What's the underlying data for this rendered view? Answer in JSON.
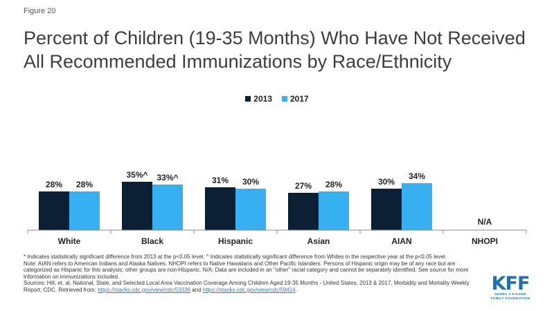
{
  "figure_label": "Figure 20",
  "title": "Percent of Children (19-35 Months) Who Have Not Received All Recommended Immunizations by Race/Ethnicity",
  "colors": {
    "2013": "#0b1f35",
    "2017": "#36b0f0"
  },
  "chart_data": {
    "type": "bar",
    "title": "Percent of Children (19-35 Months) Who Have Not Received All Recommended Immunizations by Race/Ethnicity",
    "categories": [
      "White",
      "Black",
      "Hispanic",
      "Asian",
      "AIAN",
      "NHOPI"
    ],
    "series": [
      {
        "name": "2013",
        "values": [
          28,
          35,
          31,
          27,
          30,
          null
        ],
        "labels": [
          "28%",
          "35%^",
          "31%",
          "27%",
          "30%",
          ""
        ]
      },
      {
        "name": "2017",
        "values": [
          28,
          33,
          30,
          28,
          34,
          null
        ],
        "labels": [
          "28%",
          "33%^",
          "30%",
          "28%",
          "34%",
          ""
        ]
      }
    ],
    "missing_label": "N/A",
    "ylim": [
      0,
      37
    ],
    "legend": "top-center",
    "grid": false
  },
  "notes": {
    "line1": "* Indicates statistically significant difference from 2013 at the p<0.05 level. ^ Indicates statistically significant difference from Whites in the respective year at the p<0.05 level.",
    "line2": "Note: AIAN refers to American Indians and Alaska Natives. NHOPI refers to Native Hawaiians and Other Pacific Islanders. Persons of Hispanic origin may be of any race but are categorized as Hispanic for this analysis; other groups are non-Hispanic. N/A: Data are included in an \"other\" racial category and cannot be separately identified. See source for more information on immunizations included.",
    "sources_prefix": "Sources: Hill, et. al, National, State, and Selected Local Area Vaccination Coverage Among Children Aged 19-35 Months - United States, 2013 & 2017, Morbidity and Mortality Weekly Report, CDC. Retrieved from: ",
    "link1": "https://stacks.cdc.gov/view/cdc/53336",
    "and": " and ",
    "link2": "https://stacks.cdc.gov/view/cdc/59414",
    "period": "."
  },
  "logo": {
    "mark": "KFF",
    "line1": "HENRY J KAISER",
    "line2": "FAMILY FOUNDATION"
  }
}
